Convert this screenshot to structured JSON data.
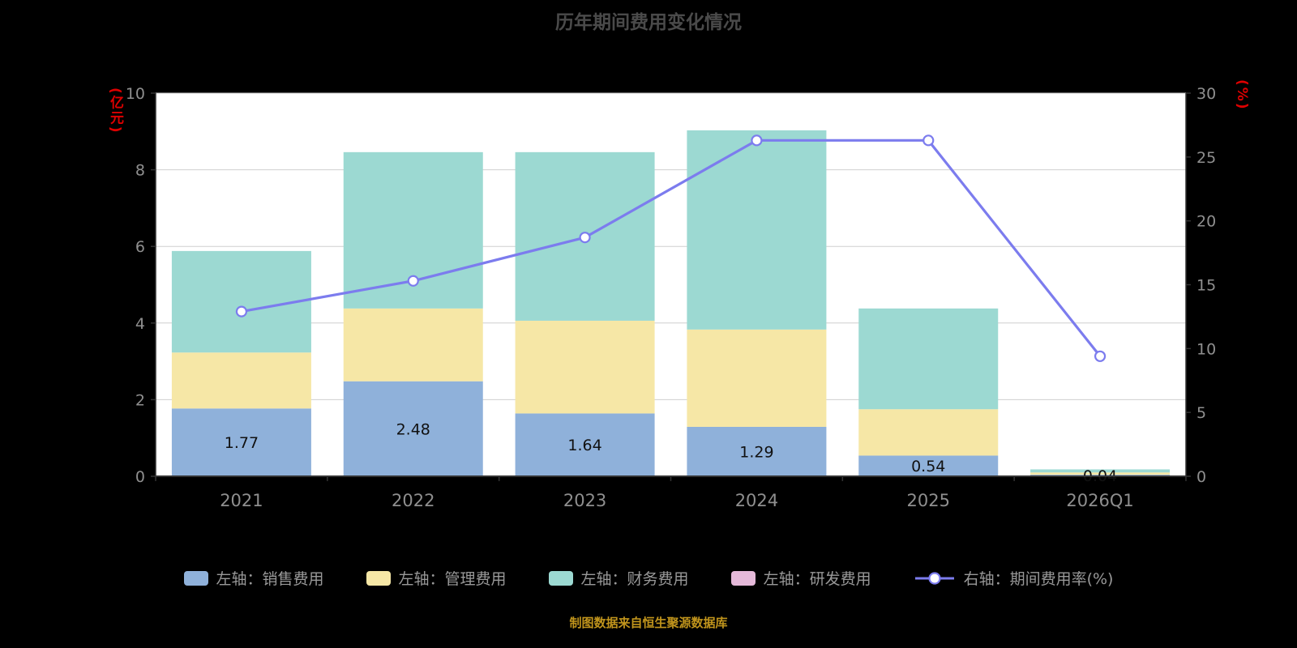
{
  "title": "历年期间费用变化情况",
  "source_note": "制图数据来自恒生聚源数据库",
  "colors": {
    "page_bg": "#000000",
    "plot_bg": "#ffffff",
    "title": "#4a4a4a",
    "axis_unit": "#dd0000",
    "tick": "#8f8f8f",
    "grid": "#cfcfcf",
    "axis_line": "#333333",
    "bar_label": "#111111",
    "legend_text": "#999999",
    "source": "#c0941c"
  },
  "chart_data": {
    "type": "bar+line",
    "title": "历年期间费用变化情况",
    "categories": [
      "2021",
      "2022",
      "2023",
      "2024",
      "2025",
      "2026Q1"
    ],
    "series": [
      {
        "name": "左轴：销售费用",
        "kind": "bar",
        "axis": "left",
        "color": "#8fb1da",
        "values": [
          1.77,
          2.48,
          1.64,
          1.29,
          0.54,
          0.04
        ]
      },
      {
        "name": "左轴：管理费用",
        "kind": "bar",
        "axis": "left",
        "color": "#f6e7a6",
        "values": [
          1.46,
          1.9,
          2.42,
          2.54,
          1.21,
          0.06
        ]
      },
      {
        "name": "左轴：财务费用",
        "kind": "bar",
        "axis": "left",
        "color": "#9cd9d2",
        "values": [
          2.65,
          4.08,
          4.4,
          5.2,
          2.63,
          0.08
        ]
      },
      {
        "name": "左轴：研发费用",
        "kind": "bar",
        "axis": "left",
        "color": "#e5b9d9",
        "values": [
          0,
          0,
          0,
          0,
          0,
          0
        ]
      },
      {
        "name": "右轴：期间费用率(%)",
        "kind": "line",
        "axis": "right",
        "color": "#7c7cee",
        "values": [
          12.9,
          15.3,
          18.7,
          26.3,
          26.3,
          9.4
        ]
      }
    ],
    "bar_labels": [
      "1.77",
      "2.48",
      "1.64",
      "1.29",
      "0.54",
      "0.04"
    ],
    "left_axis": {
      "unit": "(亿元)",
      "ticks": [
        0,
        2,
        4,
        6,
        8,
        10
      ],
      "lim": [
        0,
        10
      ]
    },
    "right_axis": {
      "unit": "(%)",
      "ticks": [
        0,
        5,
        10,
        15,
        20,
        25,
        30
      ],
      "lim": [
        0,
        30
      ]
    },
    "grid": true,
    "legend_position": "bottom"
  }
}
